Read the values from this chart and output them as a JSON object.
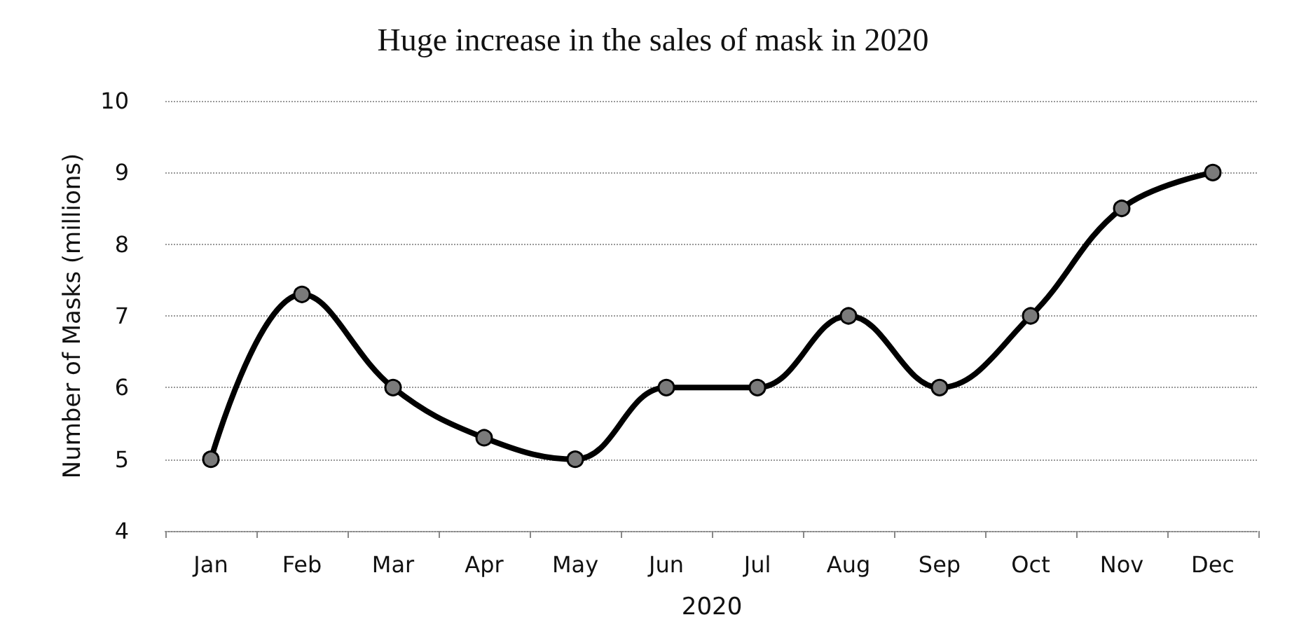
{
  "chart_data": {
    "type": "line",
    "title": "Huge increase in the sales of mask in 2020",
    "xlabel": "2020",
    "ylabel": "Number of Masks (millions)",
    "categories": [
      "Jan",
      "Feb",
      "Mar",
      "Apr",
      "May",
      "Jun",
      "Jul",
      "Aug",
      "Sep",
      "Oct",
      "Nov",
      "Dec"
    ],
    "series": [
      {
        "color": "#000000",
        "values": [
          5,
          7.3,
          6,
          5.3,
          5,
          6,
          6,
          7,
          6,
          7,
          8.5,
          9
        ]
      }
    ],
    "ylim": [
      4,
      10
    ],
    "yticks": [
      4,
      5,
      6,
      7,
      8,
      9,
      10
    ],
    "grid": "y",
    "marker": "circle",
    "line_style": "solid"
  }
}
